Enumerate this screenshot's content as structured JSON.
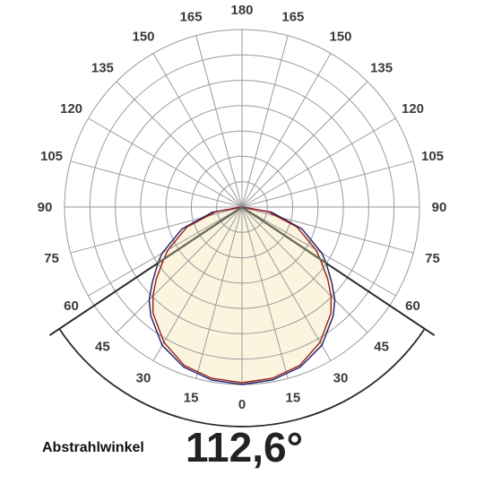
{
  "chart_data": {
    "type": "polar",
    "grid": true,
    "angle_ticks_left": [
      "0",
      "15",
      "30",
      "45",
      "60",
      "75",
      "90",
      "105",
      "120",
      "135",
      "150",
      "165",
      "180"
    ],
    "angle_ticks_right": [
      "15",
      "30",
      "45",
      "60",
      "75",
      "90",
      "105",
      "120",
      "135",
      "150",
      "165"
    ],
    "rings": 7,
    "series": [
      {
        "color": "#1c1f6e",
        "points": [
          {
            "angle": 0,
            "r": 1.0
          },
          {
            "angle": 10,
            "r": 0.99
          },
          {
            "angle": 20,
            "r": 0.96
          },
          {
            "angle": 30,
            "r": 0.9
          },
          {
            "angle": 40,
            "r": 0.8
          },
          {
            "angle": 45,
            "r": 0.74
          },
          {
            "angle": 50,
            "r": 0.66
          },
          {
            "angle": 56.3,
            "r": 0.57
          },
          {
            "angle": 60,
            "r": 0.52
          },
          {
            "angle": 70,
            "r": 0.36
          },
          {
            "angle": 80,
            "r": 0.17
          },
          {
            "angle": 90,
            "r": 0.0
          }
        ]
      },
      {
        "color": "#9a1f1f",
        "points": [
          {
            "angle": 0,
            "r": 0.99
          },
          {
            "angle": 10,
            "r": 0.98
          },
          {
            "angle": 20,
            "r": 0.95
          },
          {
            "angle": 30,
            "r": 0.88
          },
          {
            "angle": 40,
            "r": 0.78
          },
          {
            "angle": 45,
            "r": 0.71
          },
          {
            "angle": 50,
            "r": 0.63
          },
          {
            "angle": 56.3,
            "r": 0.53
          },
          {
            "angle": 60,
            "r": 0.48
          },
          {
            "angle": 70,
            "r": 0.33
          },
          {
            "angle": 80,
            "r": 0.15
          },
          {
            "angle": 90,
            "r": 0.0
          }
        ]
      }
    ],
    "beam_angle_deg": 112.6,
    "fill_color": "#fbf5e0",
    "grid_color": "#9a9a9a"
  },
  "footer": {
    "label": "Abstrahlwinkel",
    "value": "112,6°"
  }
}
